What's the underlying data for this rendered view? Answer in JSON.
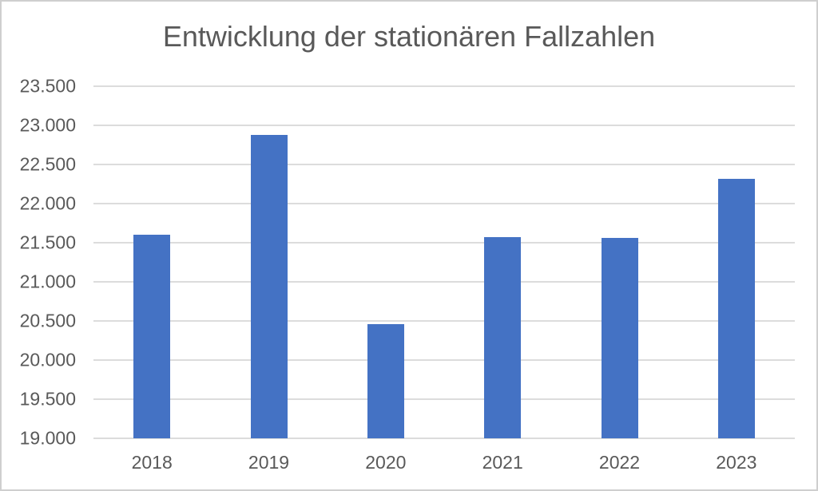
{
  "frame": {
    "background_color": "#FFFFFF",
    "border_color": "#CFCFCF"
  },
  "chart_data": {
    "type": "bar",
    "title": "Entwicklung der stationären Fallzahlen",
    "categories": [
      "2018",
      "2019",
      "2020",
      "2021",
      "2022",
      "2023"
    ],
    "values": [
      21600,
      22880,
      20460,
      21570,
      21560,
      22320
    ],
    "xlabel": "",
    "ylabel": "",
    "ylim": [
      19000,
      23500
    ],
    "ytick_step": 500,
    "ytick_labels": [
      "23.500",
      "23.000",
      "22.500",
      "22.000",
      "21.500",
      "21.000",
      "20.500",
      "20.000",
      "19.500",
      "19.000"
    ],
    "grid": true,
    "legend_position": "none",
    "bar_color": "#4472C4",
    "gridline_color": "#DCDCDC",
    "text_color": "#595959"
  }
}
